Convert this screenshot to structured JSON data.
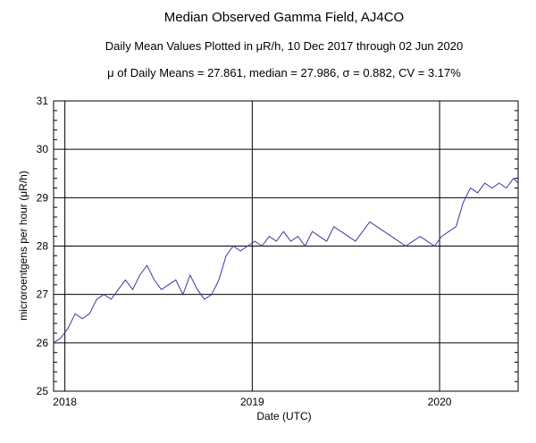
{
  "chart_data": {
    "type": "line",
    "title": "Median Observed Gamma Field, AJ4CO",
    "subtitle": "Daily Mean Values Plotted in μR/h, 10 Dec 2017 through 02 Jun 2020",
    "stats_line": "μ of Daily Means = 27.861,   median = 27.986,   σ = 0.882,   CV = 3.17%",
    "xlabel": "Date (UTC)",
    "ylabel": "microroentgens per hour (μR/h)",
    "x_range": [
      "2017-12-10",
      "2020-06-02"
    ],
    "ylim": [
      25,
      31
    ],
    "yticks": [
      25,
      26,
      27,
      28,
      29,
      30,
      31
    ],
    "xticks": [
      {
        "label": "2018",
        "date": "2018-01-01"
      },
      {
        "label": "2019",
        "date": "2019-01-01"
      },
      {
        "label": "2020",
        "date": "2020-01-01"
      }
    ],
    "grid": true,
    "line_color": "#3a3aa0",
    "series": [
      {
        "points": [
          [
            "2017-12-10",
            26.0
          ],
          [
            "2017-12-24",
            26.1
          ],
          [
            "2018-01-07",
            26.3
          ],
          [
            "2018-01-21",
            26.6
          ],
          [
            "2018-02-04",
            26.5
          ],
          [
            "2018-02-18",
            26.6
          ],
          [
            "2018-03-04",
            26.9
          ],
          [
            "2018-03-18",
            27.0
          ],
          [
            "2018-04-01",
            26.9
          ],
          [
            "2018-04-15",
            27.1
          ],
          [
            "2018-04-29",
            27.3
          ],
          [
            "2018-05-13",
            27.1
          ],
          [
            "2018-05-27",
            27.4
          ],
          [
            "2018-06-10",
            27.6
          ],
          [
            "2018-06-24",
            27.3
          ],
          [
            "2018-07-08",
            27.1
          ],
          [
            "2018-07-22",
            27.2
          ],
          [
            "2018-08-05",
            27.3
          ],
          [
            "2018-08-19",
            27.0
          ],
          [
            "2018-09-02",
            27.4
          ],
          [
            "2018-09-16",
            27.1
          ],
          [
            "2018-09-30",
            26.9
          ],
          [
            "2018-10-14",
            27.0
          ],
          [
            "2018-10-28",
            27.3
          ],
          [
            "2018-11-11",
            27.8
          ],
          [
            "2018-11-25",
            28.0
          ],
          [
            "2018-12-09",
            27.9
          ],
          [
            "2018-12-23",
            28.0
          ],
          [
            "2019-01-06",
            28.1
          ],
          [
            "2019-01-20",
            28.0
          ],
          [
            "2019-02-03",
            28.2
          ],
          [
            "2019-02-17",
            28.1
          ],
          [
            "2019-03-03",
            28.3
          ],
          [
            "2019-03-17",
            28.1
          ],
          [
            "2019-03-31",
            28.2
          ],
          [
            "2019-04-14",
            28.0
          ],
          [
            "2019-04-28",
            28.3
          ],
          [
            "2019-05-12",
            28.2
          ],
          [
            "2019-05-26",
            28.1
          ],
          [
            "2019-06-09",
            28.4
          ],
          [
            "2019-06-23",
            28.3
          ],
          [
            "2019-07-07",
            28.2
          ],
          [
            "2019-07-21",
            28.1
          ],
          [
            "2019-08-04",
            28.3
          ],
          [
            "2019-08-18",
            28.5
          ],
          [
            "2019-09-01",
            28.4
          ],
          [
            "2019-09-15",
            28.3
          ],
          [
            "2019-09-29",
            28.2
          ],
          [
            "2019-10-13",
            28.1
          ],
          [
            "2019-10-27",
            28.0
          ],
          [
            "2019-11-10",
            28.1
          ],
          [
            "2019-11-24",
            28.2
          ],
          [
            "2019-12-08",
            28.1
          ],
          [
            "2019-12-22",
            28.0
          ],
          [
            "2020-01-05",
            28.2
          ],
          [
            "2020-01-19",
            28.3
          ],
          [
            "2020-02-02",
            28.4
          ],
          [
            "2020-02-16",
            28.9
          ],
          [
            "2020-03-01",
            29.2
          ],
          [
            "2020-03-15",
            29.1
          ],
          [
            "2020-03-29",
            29.3
          ],
          [
            "2020-04-12",
            29.2
          ],
          [
            "2020-04-26",
            29.3
          ],
          [
            "2020-05-10",
            29.2
          ],
          [
            "2020-05-24",
            29.4
          ],
          [
            "2020-06-02",
            29.3
          ]
        ]
      }
    ]
  }
}
